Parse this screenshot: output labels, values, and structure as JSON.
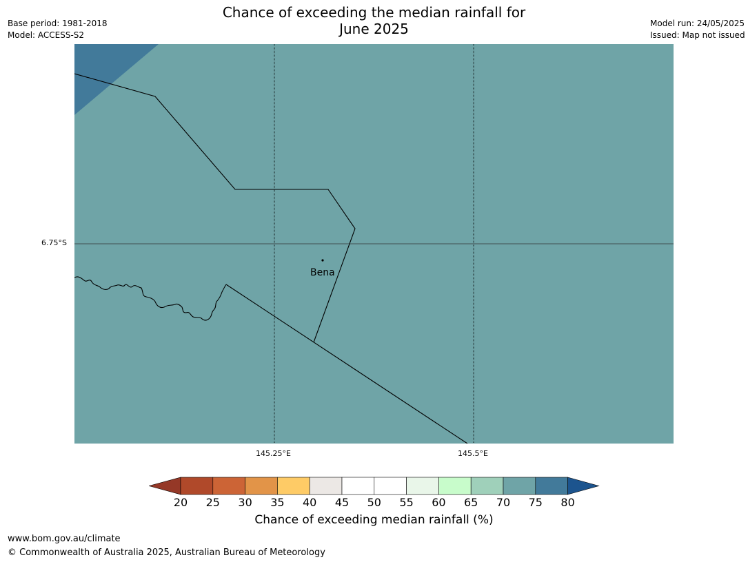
{
  "title_line1": "Chance of exceeding the median rainfall for",
  "title_line2": "June 2025",
  "meta_left": [
    "Base period: 1981-2018",
    "Model: ACCESS-S2"
  ],
  "meta_right": [
    "Model run: 24/05/2025",
    "Issued: Map not issued"
  ],
  "map": {
    "lat_label": "6.75°S",
    "lon_labels": [
      "145.25°E",
      "145.5°E"
    ],
    "place": "Bena",
    "fill_color": "#6fa4a7",
    "corner_color": "#427a9a"
  },
  "colorbar": {
    "ticks": [
      "20",
      "25",
      "30",
      "35",
      "40",
      "45",
      "50",
      "55",
      "60",
      "65",
      "70",
      "75",
      "80"
    ],
    "colors": [
      "#b0492a",
      "#cc6436",
      "#e29448",
      "#fecb66",
      "#ece8e5",
      "#ffffff",
      "#ffffff",
      "#e9f6e9",
      "#c8fccb",
      "#9fd0ba",
      "#6fa4a7",
      "#427a9a"
    ],
    "low_extend_color": "#953827",
    "high_extend_color": "#1c548e",
    "label": "Chance of exceeding median rainfall (%)"
  },
  "footer": {
    "url": "www.bom.gov.au/climate",
    "copyright": "© Commonwealth of Australia 2025, Australian Bureau of Meteorology"
  }
}
